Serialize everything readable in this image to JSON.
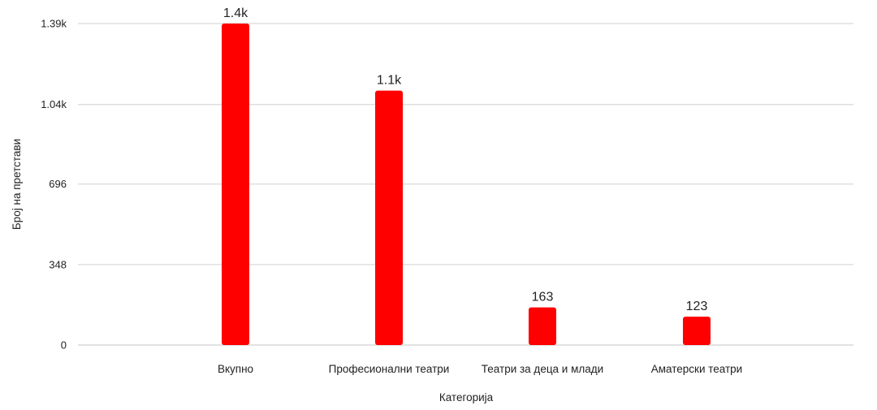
{
  "chart_data": {
    "type": "bar",
    "xlabel": "Категорија",
    "ylabel": "Број на претстави",
    "categories": [
      "Вкупно",
      "Професионални театри",
      "Театри за деца и млади",
      "Аматерски театри"
    ],
    "values": [
      1390,
      1100,
      163,
      123
    ],
    "value_labels": [
      "1.4k",
      "1.1k",
      "163",
      "123"
    ],
    "yticks": [
      0,
      348,
      696,
      1040,
      1390
    ],
    "ytick_labels": [
      "0",
      "348",
      "696",
      "1.04k",
      "1.39k"
    ],
    "ylim": [
      0,
      1390
    ],
    "grid": true,
    "legend": "none"
  },
  "colors": {
    "bar": "#ff0000",
    "grid": "#d0d0d0",
    "text": "#222222"
  }
}
